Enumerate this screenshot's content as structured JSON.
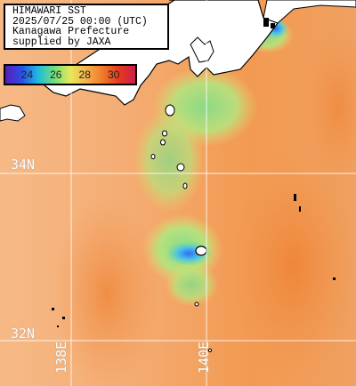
{
  "header": {
    "line1": "HIMAWARI SST",
    "line2": "2025/07/25 00:00 (UTC)",
    "line3": "Kanagawa Prefecture",
    "line4": "supplied by JAXA"
  },
  "legend": {
    "ticks": [
      "24",
      "26",
      "28",
      "30"
    ],
    "tick_values": [
      24,
      26,
      28,
      30
    ],
    "range": [
      22.5,
      31.5
    ],
    "colors": [
      "#5a1bb8",
      "#2a4fe6",
      "#1fb8e0",
      "#6fe07a",
      "#e8e85a",
      "#f5b04a",
      "#f07a2a",
      "#e43a1e",
      "#cc1e4a"
    ]
  },
  "grid": {
    "lat_labels": [
      {
        "text": "34N"
      },
      {
        "text": "32N"
      }
    ],
    "lon_labels": [
      {
        "text": "138E"
      },
      {
        "text": "140E"
      }
    ]
  },
  "palette": {
    "land": "#ffffff",
    "coast": "#000000",
    "cloud": "#000000",
    "ocean_warm": "#f5b07a",
    "ocean_hot": "#f08c3c",
    "cool_patch": "#7ee08a",
    "cold_core": "#3a6ef0"
  }
}
